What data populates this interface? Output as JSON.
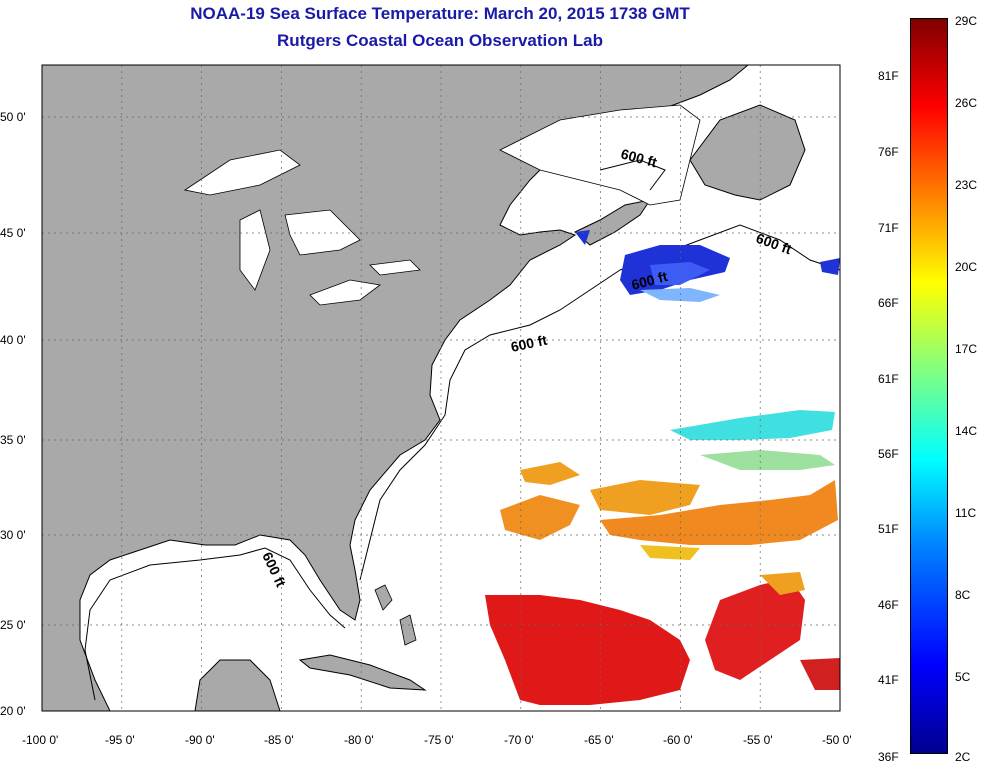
{
  "title": "NOAA-19 Sea Surface Temperature:  March 20, 2015 1738 GMT",
  "subtitle": "Rutgers Coastal Ocean Observation Lab",
  "map": {
    "x_ticks": [
      "-100 0'",
      "-95 0'",
      "-90 0'",
      "-85 0'",
      "-80 0'",
      "-75 0'",
      "-70 0'",
      "-65 0'",
      "-60 0'",
      "-55 0'",
      "-50 0'"
    ],
    "y_ticks": [
      "50 0'",
      "45 0'",
      "40 0'",
      "35 0'",
      "30 0'",
      "25 0'",
      "20 0'"
    ],
    "contour_labels": [
      "600 ft",
      "600 ft",
      "600 ft",
      "600 ft",
      "600 ft"
    ],
    "land_color": "#a9a9a9",
    "ocean_color": "#ffffff"
  },
  "colorbar": {
    "celsius": [
      "29C",
      "26C",
      "23C",
      "20C",
      "17C",
      "14C",
      "11C",
      "8C",
      "5C",
      "2C"
    ],
    "fahrenheit": [
      "81F",
      "76F",
      "71F",
      "66F",
      "61F",
      "56F",
      "51F",
      "46F",
      "41F",
      "36F"
    ]
  }
}
